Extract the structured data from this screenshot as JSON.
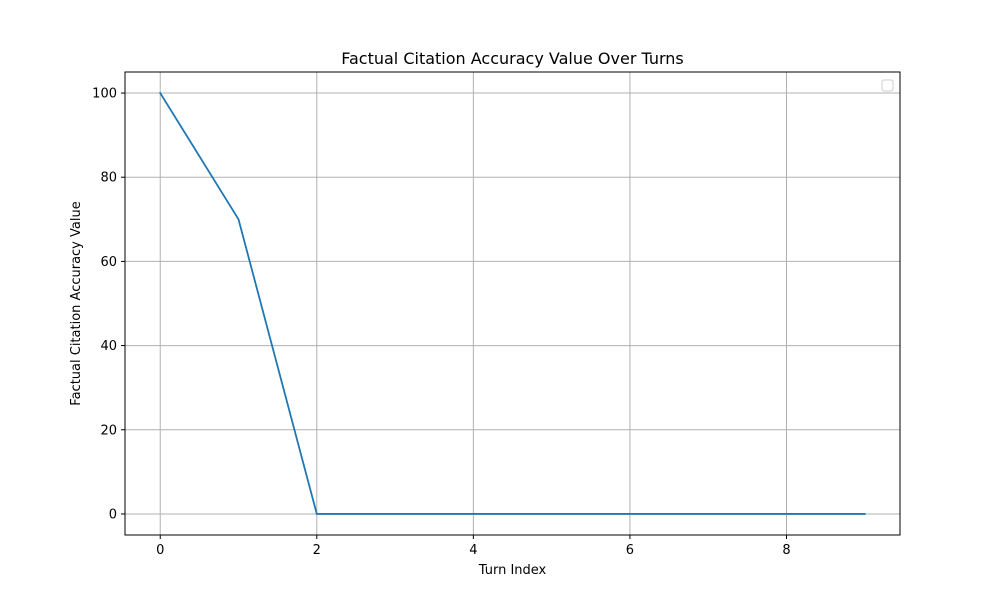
{
  "chart_data": {
    "type": "line",
    "title": "Factual Citation Accuracy Value Over Turns",
    "xlabel": "Turn Index",
    "ylabel": "Factual Citation Accuracy Value",
    "xlim": [
      -0.45,
      9.45
    ],
    "ylim": [
      -5,
      105
    ],
    "xticks": [
      0,
      2,
      4,
      6,
      8
    ],
    "yticks": [
      0,
      20,
      40,
      60,
      80,
      100
    ],
    "grid": true,
    "legend": {
      "placement": "top-right",
      "entries": []
    },
    "colors": {
      "series": "#1f77b4",
      "grid": "#b0b0b0",
      "axes": "#000000"
    },
    "x": [
      0,
      1,
      2,
      3,
      4,
      5,
      6,
      7,
      8,
      9
    ],
    "series": [
      {
        "values": [
          100,
          70,
          0,
          0,
          0,
          0,
          0,
          0,
          0,
          0
        ]
      }
    ]
  }
}
